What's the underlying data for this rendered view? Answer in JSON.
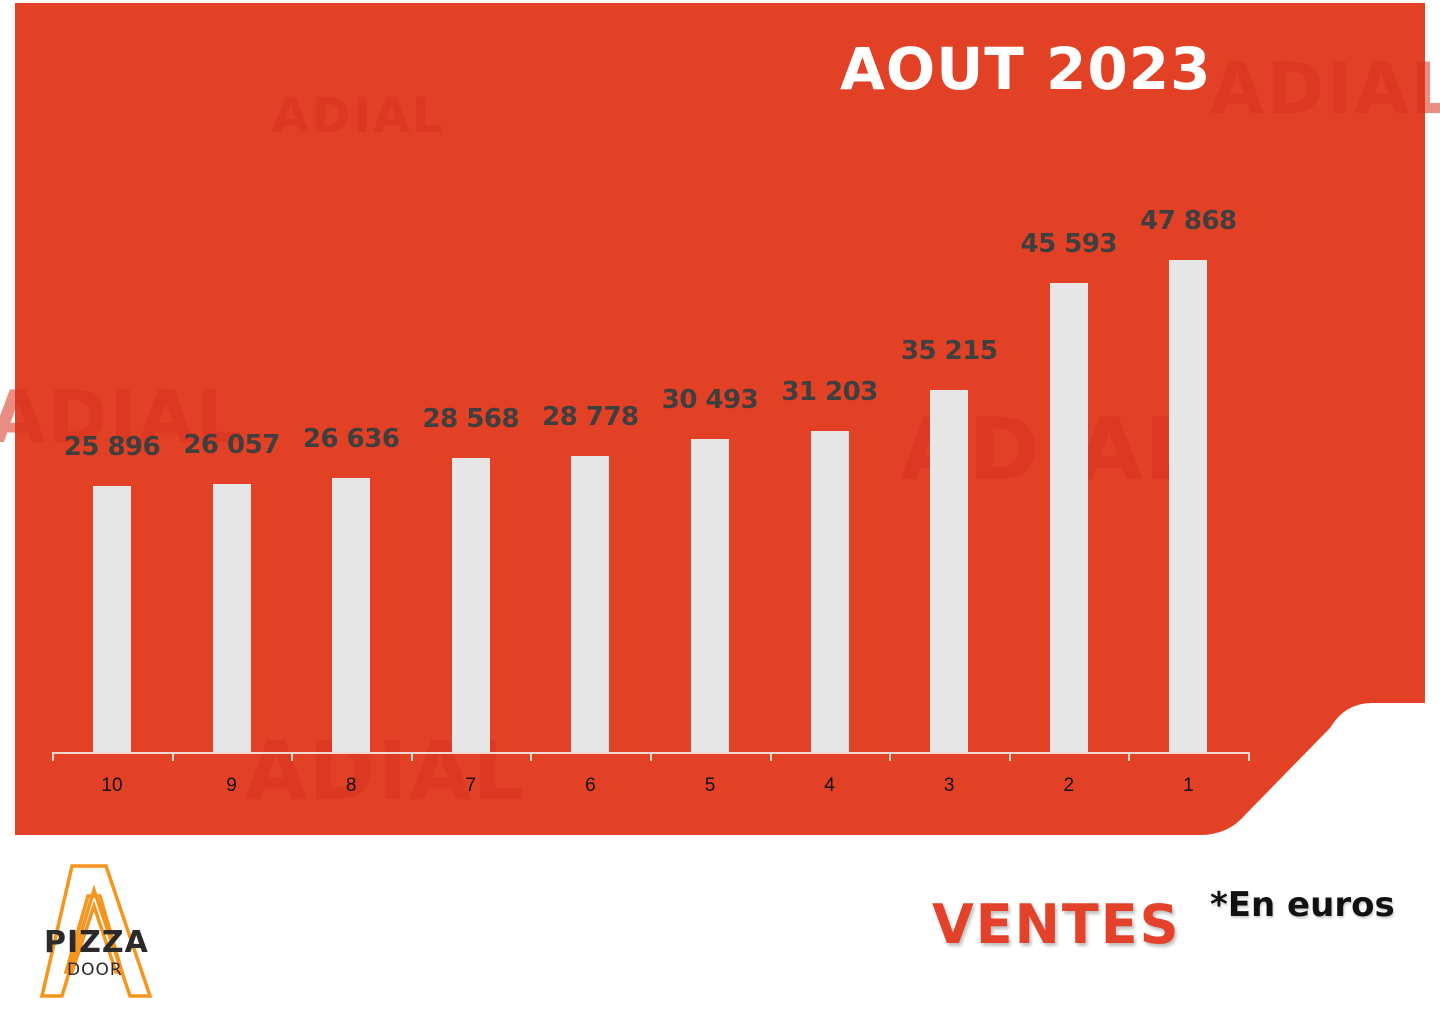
{
  "header": {
    "title": "AOUT 2023"
  },
  "footer": {
    "section_title": "VENTES",
    "unit_note": "*En euros",
    "logo": {
      "line1": "PIZZA",
      "line2": "DOOR"
    }
  },
  "watermark": {
    "text": "ADIAL"
  },
  "colors": {
    "panel": "#e34125",
    "bar": "#e6e6e6",
    "value_label": "#3f3f3f",
    "ventes": "#e4412a",
    "logo_accent": "#f7941d"
  },
  "bars": [
    {
      "category": "10",
      "value": 25896,
      "label": "25 896"
    },
    {
      "category": "9",
      "value": 26057,
      "label": "26 057"
    },
    {
      "category": "8",
      "value": 26636,
      "label": "26 636"
    },
    {
      "category": "7",
      "value": 28568,
      "label": "28 568"
    },
    {
      "category": "6",
      "value": 28778,
      "label": "28 778"
    },
    {
      "category": "5",
      "value": 30493,
      "label": "30 493"
    },
    {
      "category": "4",
      "value": 31203,
      "label": "31 203"
    },
    {
      "category": "3",
      "value": 35215,
      "label": "35 215"
    },
    {
      "category": "2",
      "value": 45593,
      "label": "45 593"
    },
    {
      "category": "1",
      "value": 47868,
      "label": "47 868"
    }
  ],
  "chart_data": {
    "type": "bar",
    "title": "AOUT 2023",
    "subtitle": "VENTES *En euros",
    "categories": [
      "10",
      "9",
      "8",
      "7",
      "6",
      "5",
      "4",
      "3",
      "2",
      "1"
    ],
    "values": [
      25896,
      26057,
      26636,
      28568,
      28778,
      30493,
      31203,
      35215,
      45593,
      47868
    ],
    "data_labels": [
      "25 896",
      "26 057",
      "26 636",
      "28 568",
      "28 778",
      "30 493",
      "31 203",
      "35 215",
      "45 593",
      "47 868"
    ],
    "xlabel": "",
    "ylabel": "Ventes (€)",
    "ylim": [
      0,
      50000
    ],
    "grid": false,
    "legend": null,
    "y_axis_visible": false
  }
}
